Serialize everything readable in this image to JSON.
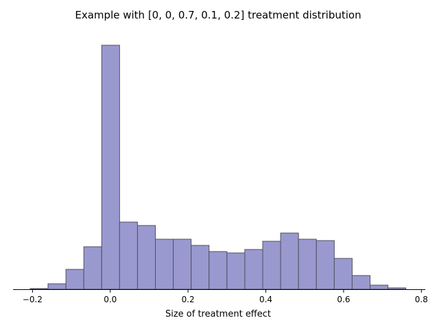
{
  "chart_data": {
    "type": "bar",
    "title": "Example with [0, 0, 0.7, 0.1, 0.2] treatment distribution",
    "xlabel": "Size of treatment effect",
    "ylabel": "",
    "xlim": [
      -0.25,
      0.81
    ],
    "xticks": [
      -0.2,
      0.0,
      0.2,
      0.4,
      0.6,
      0.8
    ],
    "xtick_labels": [
      "−0.2",
      "0.0",
      "0.2",
      "0.4",
      "0.6",
      "0.8"
    ],
    "y_axis_visible": false,
    "grid": false,
    "bin_edges": [
      -0.206,
      -0.16,
      -0.114,
      -0.068,
      -0.022,
      0.024,
      0.07,
      0.116,
      0.162,
      0.208,
      0.254,
      0.3,
      0.346,
      0.392,
      0.438,
      0.484,
      0.53,
      0.576,
      0.622,
      0.668,
      0.714,
      0.76
    ],
    "values": [
      1,
      8,
      29,
      62,
      356,
      98,
      93,
      73,
      73,
      64,
      55,
      53,
      58,
      70,
      82,
      73,
      71,
      45,
      20,
      6,
      2
    ],
    "ylim": [
      0,
      372
    ],
    "bar_color": "#9999d0",
    "edge_color": "#50505e"
  }
}
